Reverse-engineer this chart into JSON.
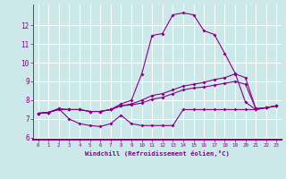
{
  "xlabel": "Windchill (Refroidissement éolien,°C)",
  "bg_color": "#cce8e8",
  "line_color": "#880088",
  "x_hours": [
    0,
    1,
    2,
    3,
    4,
    5,
    6,
    7,
    8,
    9,
    10,
    11,
    12,
    13,
    14,
    15,
    16,
    17,
    18,
    19,
    20,
    21,
    22,
    23
  ],
  "line1": [
    7.3,
    7.35,
    7.55,
    7.0,
    6.75,
    6.65,
    6.6,
    6.75,
    7.2,
    6.75,
    6.65,
    6.65,
    6.65,
    6.65,
    7.5,
    7.5,
    7.5,
    7.5,
    7.5,
    7.5,
    7.5,
    7.5,
    7.6,
    7.7
  ],
  "line2": [
    7.3,
    7.35,
    7.55,
    7.5,
    7.5,
    7.4,
    7.4,
    7.5,
    7.8,
    8.0,
    9.4,
    11.45,
    11.55,
    12.55,
    12.65,
    12.55,
    11.7,
    11.5,
    10.5,
    9.45,
    7.9,
    7.5,
    7.6,
    7.7
  ],
  "line3": [
    7.3,
    7.35,
    7.5,
    7.5,
    7.5,
    7.4,
    7.4,
    7.5,
    7.7,
    7.8,
    8.0,
    8.25,
    8.35,
    8.55,
    8.75,
    8.85,
    8.95,
    9.1,
    9.2,
    9.4,
    9.2,
    7.55,
    7.6,
    7.7
  ],
  "line4": [
    7.3,
    7.35,
    7.5,
    7.5,
    7.5,
    7.4,
    7.4,
    7.5,
    7.7,
    7.75,
    7.85,
    8.05,
    8.15,
    8.35,
    8.55,
    8.65,
    8.7,
    8.8,
    8.9,
    9.0,
    8.85,
    7.55,
    7.6,
    7.7
  ],
  "ylim": [
    5.9,
    13.1
  ],
  "xlim": [
    -0.5,
    23.5
  ],
  "yticks": [
    6,
    7,
    8,
    9,
    10,
    11,
    12
  ],
  "xticks": [
    0,
    1,
    2,
    3,
    4,
    5,
    6,
    7,
    8,
    9,
    10,
    11,
    12,
    13,
    14,
    15,
    16,
    17,
    18,
    19,
    20,
    21,
    22,
    23
  ]
}
